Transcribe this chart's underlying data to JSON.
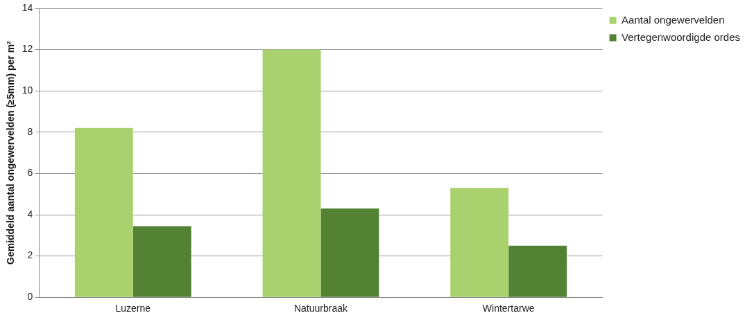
{
  "chart_data": {
    "type": "bar",
    "categories": [
      "Luzerne",
      "Natuurbraak",
      "Wintertarwe"
    ],
    "series": [
      {
        "name": "Aantal ongewervelden",
        "color": "#a9d26f",
        "values": [
          8.2,
          12.0,
          5.3
        ]
      },
      {
        "name": "Vertegenwoordigde ordes",
        "color": "#548235",
        "values": [
          3.45,
          4.3,
          2.5
        ]
      }
    ],
    "ylabel": "Gemiddeld aantal ongewervelden (≥5mm) per m²",
    "ylim": [
      0,
      14
    ],
    "yticks": [
      0,
      2,
      4,
      6,
      8,
      10,
      12,
      14
    ],
    "grid": "y",
    "legend": "top right"
  }
}
